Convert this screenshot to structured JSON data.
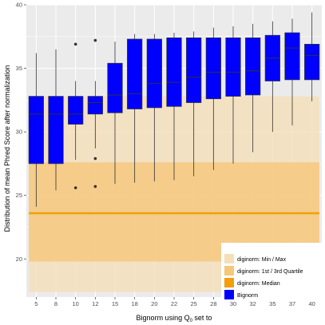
{
  "chart_data": {
    "type": "boxplot",
    "xlabel_main": "Bignorm using Q",
    "xlabel_sub": "0",
    "xlabel_tail": " set to",
    "ylabel": "Distribution of mean Phred Score after normalization",
    "ylim": [
      17,
      40
    ],
    "yticks": [
      20,
      25,
      30,
      35,
      40
    ],
    "categories": [
      "5",
      "8",
      "10",
      "12",
      "15",
      "18",
      "20",
      "22",
      "25",
      "28",
      "30",
      "32",
      "35",
      "37",
      "40"
    ],
    "boxes": [
      {
        "category": "5",
        "min": 24.1,
        "q1": 27.5,
        "median": 31.4,
        "q3": 32.8,
        "max": 36.2,
        "outliers": []
      },
      {
        "category": "8",
        "min": 25.4,
        "q1": 27.5,
        "median": 31.4,
        "q3": 32.8,
        "max": 36.5,
        "outliers": []
      },
      {
        "category": "10",
        "min": 27.8,
        "q1": 30.6,
        "median": 31.4,
        "q3": 32.8,
        "max": 34.0,
        "outliers": [
          36.9,
          25.6
        ]
      },
      {
        "category": "12",
        "min": 28.7,
        "q1": 31.4,
        "median": 32.3,
        "q3": 32.8,
        "max": 34.0,
        "outliers": [
          37.2,
          27.9,
          25.7
        ]
      },
      {
        "category": "15",
        "min": 25.9,
        "q1": 31.5,
        "median": 32.9,
        "q3": 35.4,
        "max": 37.1,
        "outliers": []
      },
      {
        "category": "18",
        "min": 26.0,
        "q1": 31.8,
        "median": 33.0,
        "q3": 37.3,
        "max": 37.7,
        "outliers": []
      },
      {
        "category": "20",
        "min": 26.1,
        "q1": 31.9,
        "median": 33.8,
        "q3": 37.3,
        "max": 37.7,
        "outliers": []
      },
      {
        "category": "22",
        "min": 26.2,
        "q1": 32.0,
        "median": 33.9,
        "q3": 37.4,
        "max": 37.8,
        "outliers": []
      },
      {
        "category": "25",
        "min": 26.5,
        "q1": 32.3,
        "median": 34.3,
        "q3": 37.4,
        "max": 37.9,
        "outliers": []
      },
      {
        "category": "28",
        "min": 27.0,
        "q1": 32.6,
        "median": 34.7,
        "q3": 37.4,
        "max": 38.2,
        "outliers": []
      },
      {
        "category": "30",
        "min": 27.5,
        "q1": 32.8,
        "median": 34.7,
        "q3": 37.4,
        "max": 38.3,
        "outliers": []
      },
      {
        "category": "32",
        "min": 28.4,
        "q1": 32.9,
        "median": 34.8,
        "q3": 37.4,
        "max": 38.5,
        "outliers": []
      },
      {
        "category": "35",
        "min": 30.0,
        "q1": 34.0,
        "median": 35.8,
        "q3": 37.6,
        "max": 38.7,
        "outliers": []
      },
      {
        "category": "37",
        "min": 30.5,
        "q1": 34.1,
        "median": 36.6,
        "q3": 37.8,
        "max": 38.9,
        "outliers": []
      },
      {
        "category": "40",
        "min": 32.4,
        "q1": 34.1,
        "median": 36.0,
        "q3": 36.9,
        "max": 39.4,
        "outliers": []
      }
    ],
    "reference_bands": {
      "min_max": [
        17.4,
        32.8
      ],
      "q1_q3": [
        19.8,
        27.6
      ],
      "median": 23.6
    },
    "legend": {
      "placement": "bottom-right",
      "entries": [
        {
          "label": "diginorm: Min / Max",
          "color": "#f5dfb9"
        },
        {
          "label": "diginorm: 1st / 3rd Quartile",
          "color": "#f5c77a"
        },
        {
          "label": "diginorm: Median",
          "color": "#f29e0d"
        },
        {
          "label": "Bignorm",
          "color": "#0000ff"
        }
      ]
    },
    "colors": {
      "panel_bg": "#ebebeb",
      "grid": "#ffffff",
      "box_fill": "#0000ff",
      "box_stroke": "#333333",
      "band_minmax": "#f5dfb9",
      "band_quartile": "#f5c77a",
      "median_line": "#f29e0d"
    },
    "grid": true
  }
}
